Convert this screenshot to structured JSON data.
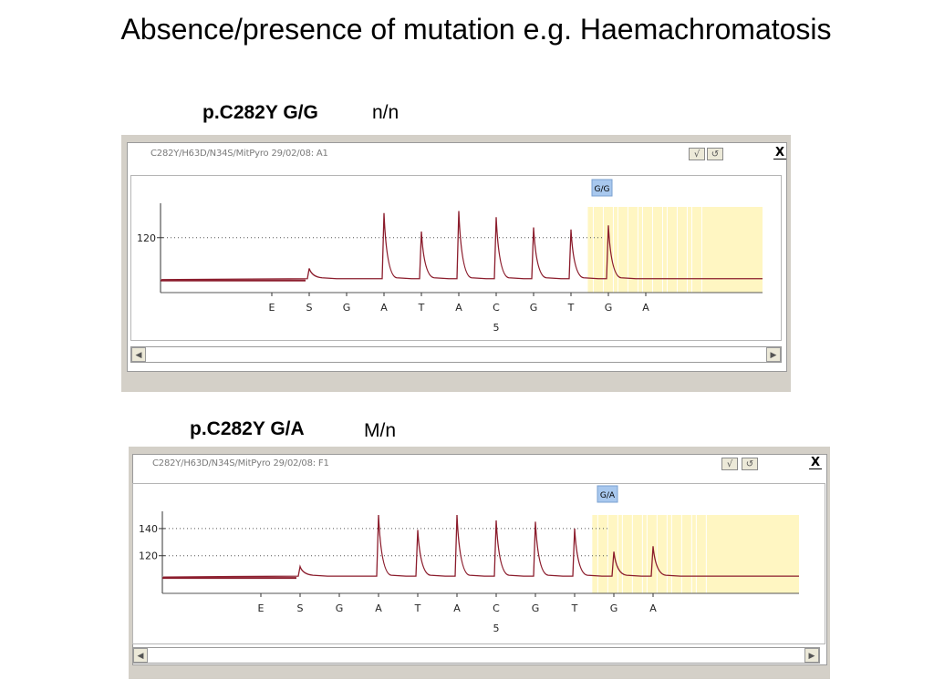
{
  "title": "Absence/presence of mutation e.g. Haemachromatosis",
  "panels": [
    {
      "genotype_label": "p.C282Y G/G",
      "status_label": "n/n",
      "caption": "C282Y/H63D/N34S/MitPyro 29/02/08: A1",
      "check_label": "√",
      "undo_label": "↺",
      "close_label": "X"
    },
    {
      "genotype_label": "p.C282Y G/A",
      "status_label": "M/n",
      "caption": "C282Y/H63D/N34S/MitPyro 29/02/08: F1",
      "check_label": "√",
      "undo_label": "↺",
      "close_label": "X"
    }
  ],
  "chart_data": [
    {
      "type": "line",
      "title": "",
      "call_label": "G/G",
      "x": [
        "E",
        "S",
        "G",
        "A",
        "T",
        "A",
        "C",
        "G",
        "T",
        "G",
        "A"
      ],
      "position_label": "5",
      "yticks": [
        120
      ],
      "ylim": [
        95,
        135
      ],
      "baseline": 100,
      "peaks": [
        {
          "base": "S",
          "value": 105
        },
        {
          "base": "A",
          "value": 132
        },
        {
          "base": "T",
          "value": 123
        },
        {
          "base": "A",
          "value": 133
        },
        {
          "base": "C",
          "value": 130
        },
        {
          "base": "G",
          "value": 125
        },
        {
          "base": "T",
          "value": 124
        },
        {
          "base": "G",
          "value": 126
        }
      ],
      "colors": {
        "trace": "#8b1c2c",
        "highlight": "#fff6c2",
        "gridline": "#555555"
      }
    },
    {
      "type": "line",
      "title": "",
      "call_label": "G/A",
      "x": [
        "E",
        "S",
        "G",
        "A",
        "T",
        "A",
        "C",
        "G",
        "T",
        "G",
        "A"
      ],
      "position_label": "5",
      "yticks": [
        140,
        120
      ],
      "ylim": [
        95,
        150
      ],
      "baseline": 105,
      "peaks": [
        {
          "base": "S",
          "value": 112
        },
        {
          "base": "A",
          "value": 150
        },
        {
          "base": "T",
          "value": 139
        },
        {
          "base": "A",
          "value": 150
        },
        {
          "base": "C",
          "value": 146
        },
        {
          "base": "G",
          "value": 145
        },
        {
          "base": "T",
          "value": 140
        },
        {
          "base": "G",
          "value": 123
        },
        {
          "base": "A",
          "value": 127
        }
      ],
      "colors": {
        "trace": "#8b1c2c",
        "highlight": "#fff6c2",
        "gridline": "#555555"
      }
    }
  ]
}
